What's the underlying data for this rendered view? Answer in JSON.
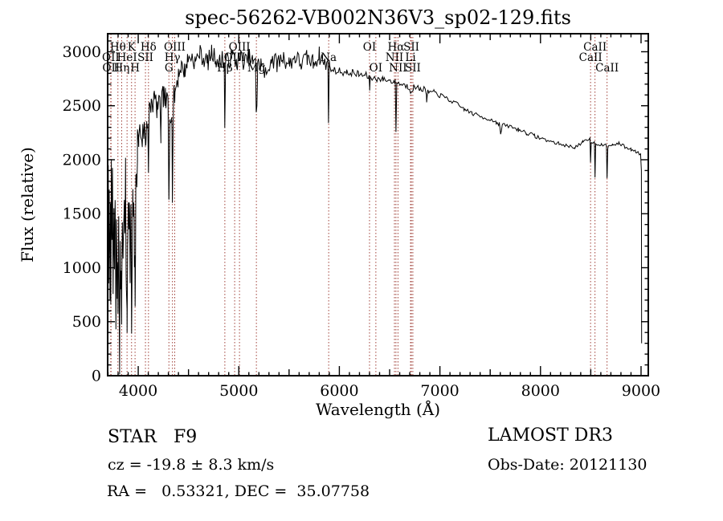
{
  "title": "spec-56262-VB002N36V3_sp02-129.fits",
  "annotations": {
    "classification": "STAR   F9",
    "cz": "cz = -19.8 ± 8.3 km/s",
    "ra_dec": "RA =   0.53321, DEC =  35.07758",
    "survey": "LAMOST DR3",
    "obs_date": "Obs-Date: 20121130"
  },
  "chart_data": {
    "type": "line",
    "title": "spec-56262-VB002N36V3_sp02-129.fits",
    "xlabel": "Wavelength (Å)",
    "ylabel": "Flux (relative)",
    "xlim": [
      3696,
      9072
    ],
    "ylim": [
      0,
      3167
    ],
    "x_major_ticks": [
      4000,
      5000,
      6000,
      7000,
      8000,
      9000
    ],
    "y_major_ticks": [
      0,
      500,
      1000,
      1500,
      2000,
      2500,
      3000
    ],
    "x_minor_step": 100,
    "y_minor_step": 100,
    "grid": false,
    "legend": "none",
    "line_color": "#000000",
    "spectral_line_color": "#a04038",
    "spectral_lines": [
      {
        "wavelength": 3727.1,
        "label": "OII",
        "row": 2
      },
      {
        "wavelength": 3729.9,
        "label": "OII",
        "row": 3
      },
      {
        "wavelength": 3798.0,
        "label": "Hθ",
        "row": 1
      },
      {
        "wavelength": 3835.4,
        "label": "Hη",
        "row": 3
      },
      {
        "wavelength": 3889.0,
        "label": "HeI",
        "row": 2
      },
      {
        "wavelength": 3933.7,
        "label": "K",
        "row": 1
      },
      {
        "wavelength": 3968.5,
        "label": "H",
        "row": 3
      },
      {
        "wavelength": 4072.0,
        "label": "SII",
        "row": 2
      },
      {
        "wavelength": 4102.0,
        "label": "Hδ",
        "row": 1
      },
      {
        "wavelength": 4305.0,
        "label": "G",
        "row": 3
      },
      {
        "wavelength": 4340.5,
        "label": "Hγ",
        "row": 2
      },
      {
        "wavelength": 4363.0,
        "label": "OIII",
        "row": 1
      },
      {
        "wavelength": 4861.3,
        "label": "Hβ",
        "row": 3
      },
      {
        "wavelength": 4959.0,
        "label": "OIII",
        "row": 2
      },
      {
        "wavelength": 5007.0,
        "label": "OIII",
        "row": 1
      },
      {
        "wavelength": 5175.0,
        "label": "Mg",
        "row": 3
      },
      {
        "wavelength": 5894.0,
        "label": "Na",
        "row": 2
      },
      {
        "wavelength": 6300.0,
        "label": "OI",
        "row": 1
      },
      {
        "wavelength": 6363.0,
        "label": "OI",
        "row": 3
      },
      {
        "wavelength": 6548.0,
        "label": "NII",
        "row": 2
      },
      {
        "wavelength": 6562.8,
        "label": "Hα",
        "row": 1
      },
      {
        "wavelength": 6583.0,
        "label": "NII",
        "row": 3
      },
      {
        "wavelength": 6707.8,
        "label": "Li",
        "row": 2
      },
      {
        "wavelength": 6716.0,
        "label": "SII",
        "row": 1
      },
      {
        "wavelength": 6730.8,
        "label": "SII",
        "row": 3
      },
      {
        "wavelength": 8498.0,
        "label": "CaII",
        "row": 2
      },
      {
        "wavelength": 8542.0,
        "label": "CaII",
        "row": 1
      },
      {
        "wavelength": 8662.0,
        "label": "CaII",
        "row": 3
      }
    ],
    "spectrum_anchors": [
      [
        3700,
        60
      ],
      [
        3702,
        1950
      ],
      [
        3706,
        950
      ],
      [
        3712,
        1500
      ],
      [
        3718,
        800
      ],
      [
        3724,
        1400
      ],
      [
        3727,
        900
      ],
      [
        3732,
        1800
      ],
      [
        3738,
        1100
      ],
      [
        3744,
        1950
      ],
      [
        3750,
        700
      ],
      [
        3758,
        1400
      ],
      [
        3764,
        1000
      ],
      [
        3770,
        1700
      ],
      [
        3778,
        650
      ],
      [
        3784,
        1300
      ],
      [
        3790,
        900
      ],
      [
        3798,
        780
      ],
      [
        3806,
        1500
      ],
      [
        3815,
        220
      ],
      [
        3822,
        1100
      ],
      [
        3828,
        800
      ],
      [
        3835,
        600
      ],
      [
        3842,
        1500
      ],
      [
        3850,
        1050
      ],
      [
        3858,
        1650
      ],
      [
        3866,
        1250
      ],
      [
        3874,
        1750
      ],
      [
        3880,
        1100
      ],
      [
        3889,
        350
      ],
      [
        3896,
        1400
      ],
      [
        3904,
        1750
      ],
      [
        3912,
        1500
      ],
      [
        3920,
        1050
      ],
      [
        3927,
        1450
      ],
      [
        3934,
        460
      ],
      [
        3941,
        1250
      ],
      [
        3948,
        1600
      ],
      [
        3955,
        1450
      ],
      [
        3962,
        1100
      ],
      [
        3969,
        800
      ],
      [
        3976,
        1600
      ],
      [
        3984,
        1950
      ],
      [
        3992,
        2100
      ],
      [
        4005,
        2200
      ],
      [
        4020,
        2280
      ],
      [
        4040,
        2200
      ],
      [
        4060,
        2300
      ],
      [
        4072,
        2150
      ],
      [
        4085,
        2350
      ],
      [
        4095,
        2400
      ],
      [
        4102,
        1890
      ],
      [
        4110,
        2430
      ],
      [
        4130,
        2520
      ],
      [
        4160,
        2560
      ],
      [
        4190,
        2480
      ],
      [
        4220,
        2480
      ],
      [
        4226,
        2180
      ],
      [
        4233,
        2500
      ],
      [
        4250,
        2600
      ],
      [
        4270,
        2550
      ],
      [
        4297,
        2500
      ],
      [
        4305,
        1620
      ],
      [
        4315,
        2450
      ],
      [
        4333,
        2480
      ],
      [
        4340,
        1700
      ],
      [
        4350,
        2550
      ],
      [
        4363,
        2600
      ],
      [
        4380,
        2700
      ],
      [
        4400,
        2800
      ],
      [
        4430,
        2870
      ],
      [
        4460,
        2820
      ],
      [
        4490,
        2920
      ],
      [
        4530,
        2960
      ],
      [
        4570,
        2900
      ],
      [
        4610,
        2990
      ],
      [
        4650,
        2940
      ],
      [
        4690,
        2900
      ],
      [
        4730,
        2990
      ],
      [
        4770,
        2940
      ],
      [
        4810,
        2900
      ],
      [
        4840,
        2950
      ],
      [
        4854,
        2900
      ],
      [
        4861,
        2330
      ],
      [
        4869,
        2890
      ],
      [
        4900,
        2930
      ],
      [
        4940,
        2960
      ],
      [
        4980,
        2900
      ],
      [
        5020,
        2950
      ],
      [
        5060,
        2900
      ],
      [
        5100,
        2950
      ],
      [
        5140,
        2900
      ],
      [
        5167,
        2880
      ],
      [
        5173,
        2480
      ],
      [
        5180,
        2520
      ],
      [
        5188,
        2870
      ],
      [
        5220,
        2900
      ],
      [
        5270,
        2780
      ],
      [
        5320,
        2940
      ],
      [
        5380,
        2890
      ],
      [
        5440,
        2950
      ],
      [
        5500,
        2890
      ],
      [
        5560,
        2950
      ],
      [
        5620,
        2890
      ],
      [
        5680,
        2940
      ],
      [
        5740,
        2900
      ],
      [
        5800,
        2970
      ],
      [
        5850,
        2890
      ],
      [
        5886,
        2880
      ],
      [
        5892,
        2420
      ],
      [
        5900,
        2850
      ],
      [
        5950,
        2830
      ],
      [
        6010,
        2820
      ],
      [
        6070,
        2800
      ],
      [
        6130,
        2810
      ],
      [
        6190,
        2790
      ],
      [
        6250,
        2780
      ],
      [
        6295,
        2770
      ],
      [
        6301,
        2650
      ],
      [
        6307,
        2760
      ],
      [
        6370,
        2750
      ],
      [
        6430,
        2745
      ],
      [
        6490,
        2735
      ],
      [
        6540,
        2725
      ],
      [
        6556,
        2720
      ],
      [
        6563,
        2260
      ],
      [
        6571,
        2710
      ],
      [
        6620,
        2700
      ],
      [
        6680,
        2680
      ],
      [
        6708,
        2640
      ],
      [
        6740,
        2670
      ],
      [
        6800,
        2660
      ],
      [
        6860,
        2650
      ],
      [
        6868,
        2540
      ],
      [
        6880,
        2630
      ],
      [
        6940,
        2620
      ],
      [
        7000,
        2600
      ],
      [
        7080,
        2560
      ],
      [
        7160,
        2520
      ],
      [
        7240,
        2470
      ],
      [
        7320,
        2430
      ],
      [
        7400,
        2400
      ],
      [
        7480,
        2380
      ],
      [
        7560,
        2350
      ],
      [
        7590,
        2330
      ],
      [
        7604,
        2240
      ],
      [
        7620,
        2320
      ],
      [
        7700,
        2310
      ],
      [
        7780,
        2280
      ],
      [
        7860,
        2250
      ],
      [
        7940,
        2220
      ],
      [
        8020,
        2195
      ],
      [
        8100,
        2170
      ],
      [
        8180,
        2150
      ],
      [
        8260,
        2130
      ],
      [
        8340,
        2115
      ],
      [
        8420,
        2160
      ],
      [
        8492,
        2190
      ],
      [
        8498,
        1980
      ],
      [
        8505,
        2170
      ],
      [
        8536,
        2160
      ],
      [
        8542,
        1840
      ],
      [
        8549,
        2150
      ],
      [
        8600,
        2140
      ],
      [
        8656,
        2130
      ],
      [
        8662,
        1815
      ],
      [
        8669,
        2120
      ],
      [
        8720,
        2140
      ],
      [
        8780,
        2150
      ],
      [
        8840,
        2120
      ],
      [
        8900,
        2095
      ],
      [
        8950,
        2075
      ],
      [
        8995,
        2055
      ],
      [
        9003,
        1900
      ],
      [
        9006,
        300
      ]
    ],
    "noise_profile": [
      [
        3995,
        270
      ],
      [
        4110,
        140
      ],
      [
        4400,
        120
      ],
      [
        5900,
        85
      ],
      [
        6300,
        35
      ],
      [
        7000,
        28
      ],
      [
        8000,
        20
      ],
      [
        9100,
        16
      ]
    ],
    "sample_steps": [
      [
        4000,
        6.5
      ],
      [
        5900,
        10
      ],
      [
        7000,
        12
      ],
      [
        9100,
        14
      ]
    ]
  }
}
